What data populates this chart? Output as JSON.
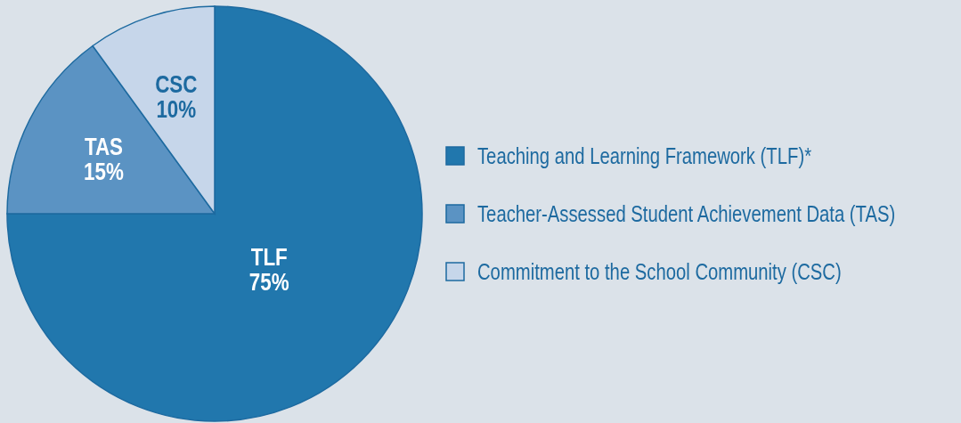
{
  "chart_data": {
    "type": "pie",
    "categories": [
      "Teaching and Learning Framework (TLF)*",
      "Teacher-Assessed Student Achievement Data (TAS)",
      "Commitment to the School Community (CSC)"
    ],
    "values": [
      75,
      15,
      10
    ],
    "colors": [
      "#2177ad",
      "#5b93c3",
      "#c6d6ea"
    ],
    "value_labels": [
      "TLF\n75%",
      "TAS\n15%",
      "CSC\n10%"
    ],
    "legend": "right"
  }
}
